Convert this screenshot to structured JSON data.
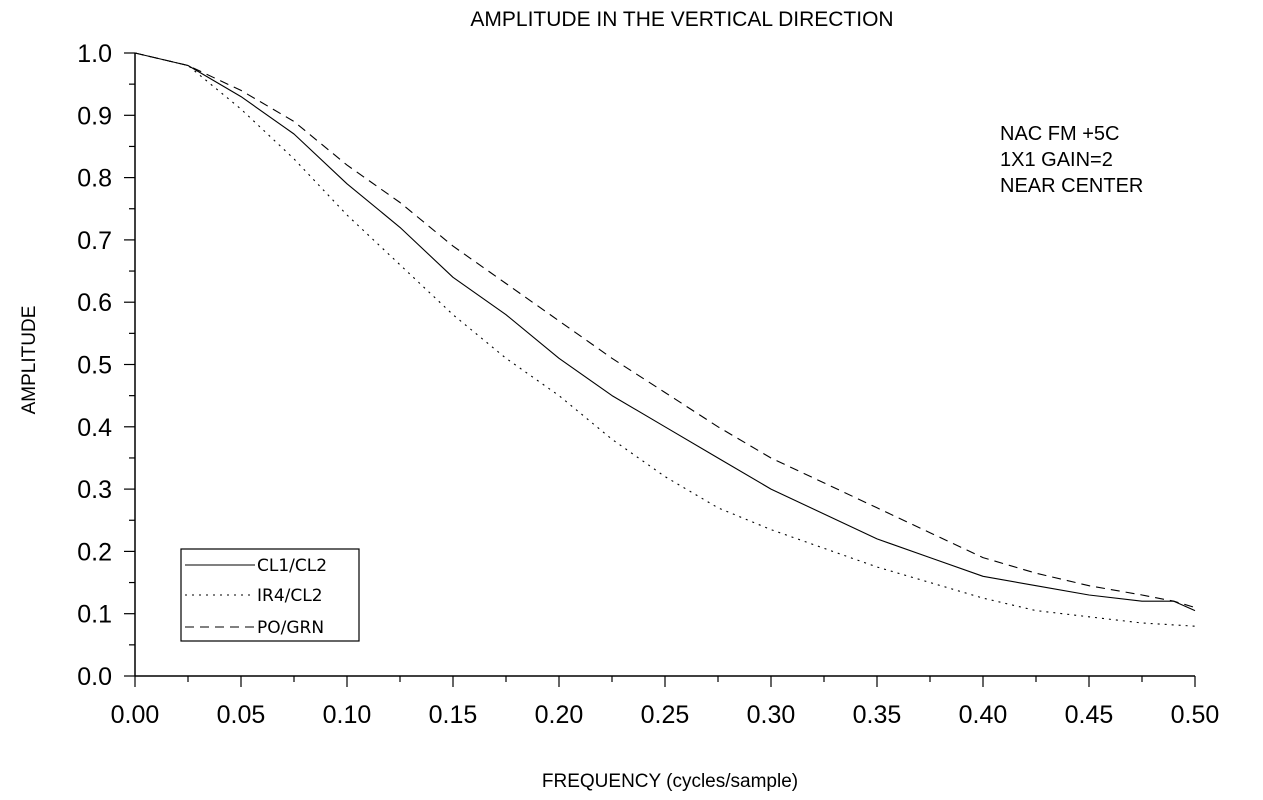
{
  "chart_data": {
    "type": "line",
    "title": "AMPLITUDE IN THE VERTICAL DIRECTION",
    "xlabel": "FREQUENCY (cycles/sample)",
    "ylabel": "AMPLITUDE",
    "xlim": [
      0.0,
      0.5
    ],
    "ylim": [
      0.0,
      1.0
    ],
    "x_ticks": [
      "0.00",
      "0.05",
      "0.10",
      "0.15",
      "0.20",
      "0.25",
      "0.30",
      "0.35",
      "0.40",
      "0.45",
      "0.50"
    ],
    "y_ticks": [
      "0.0",
      "0.1",
      "0.2",
      "0.3",
      "0.4",
      "0.5",
      "0.6",
      "0.7",
      "0.8",
      "0.9",
      "1.0"
    ],
    "grid": false,
    "legend_position": "bottom-left",
    "annotations": [
      "NAC FM  +5C",
      "1X1 GAIN=2",
      "NEAR CENTER"
    ],
    "x": [
      0.0,
      0.025,
      0.05,
      0.075,
      0.1,
      0.125,
      0.15,
      0.175,
      0.2,
      0.225,
      0.25,
      0.275,
      0.3,
      0.325,
      0.35,
      0.375,
      0.4,
      0.425,
      0.45,
      0.475,
      0.49,
      0.5
    ],
    "series": [
      {
        "name": "CL1/CL2",
        "style": "solid",
        "values": [
          1.0,
          0.98,
          0.93,
          0.87,
          0.79,
          0.72,
          0.64,
          0.58,
          0.51,
          0.45,
          0.4,
          0.35,
          0.3,
          0.26,
          0.22,
          0.19,
          0.16,
          0.145,
          0.13,
          0.12,
          0.12,
          0.105
        ]
      },
      {
        "name": "IR4/CL2",
        "style": "dotted",
        "values": [
          1.0,
          0.98,
          0.91,
          0.83,
          0.74,
          0.66,
          0.58,
          0.51,
          0.45,
          0.38,
          0.32,
          0.27,
          0.235,
          0.205,
          0.175,
          0.15,
          0.125,
          0.105,
          0.095,
          0.085,
          0.082,
          0.08
        ]
      },
      {
        "name": "PO/GRN",
        "style": "dashed",
        "values": [
          1.0,
          0.98,
          0.94,
          0.89,
          0.82,
          0.76,
          0.69,
          0.63,
          0.57,
          0.51,
          0.455,
          0.4,
          0.35,
          0.31,
          0.27,
          0.23,
          0.19,
          0.165,
          0.145,
          0.13,
          0.12,
          0.11
        ]
      }
    ]
  }
}
